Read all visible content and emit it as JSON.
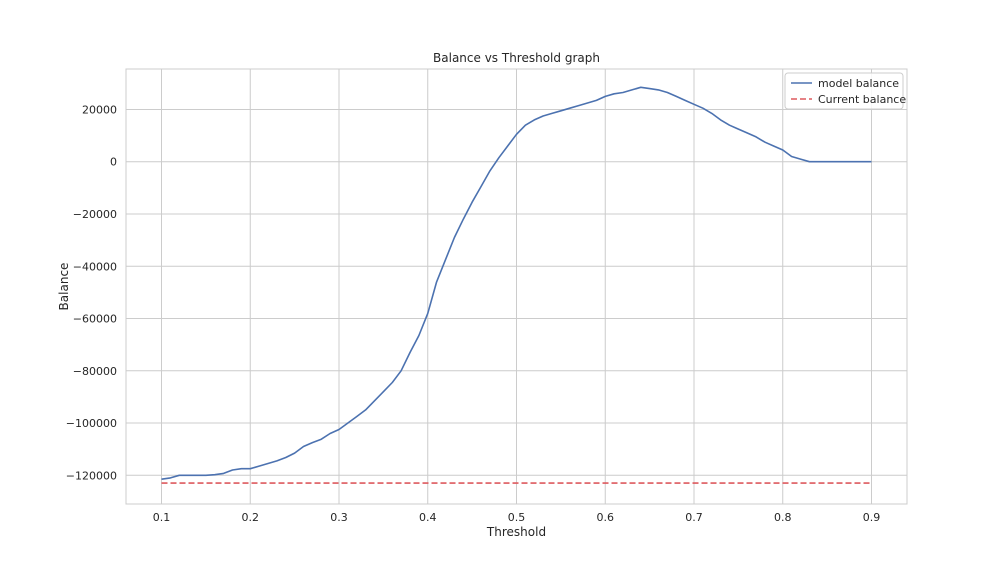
{
  "chart_data": {
    "type": "line",
    "title": "Balance vs Threshold graph",
    "xlabel": "Threshold",
    "ylabel": "Balance",
    "xlim": [
      0.06,
      0.94
    ],
    "ylim": [
      -131000,
      35500
    ],
    "xticks": [
      0.1,
      0.2,
      0.3,
      0.4,
      0.5,
      0.6,
      0.7,
      0.8,
      0.9
    ],
    "xtick_labels": [
      "0.1",
      "0.2",
      "0.3",
      "0.4",
      "0.5",
      "0.6",
      "0.7",
      "0.8",
      "0.9"
    ],
    "yticks": [
      20000,
      0,
      -20000,
      -40000,
      -60000,
      -80000,
      -100000,
      -120000
    ],
    "ytick_labels": [
      "20000",
      "0",
      "−20000",
      "−40000",
      "−60000",
      "−80000",
      "−100000",
      "−120000"
    ],
    "grid": true,
    "legend_position": "top-right",
    "series": [
      {
        "name": "model balance",
        "color": "#4c72b0",
        "style": "solid",
        "x": [
          0.1,
          0.11,
          0.12,
          0.13,
          0.14,
          0.15,
          0.16,
          0.17,
          0.18,
          0.19,
          0.2,
          0.21,
          0.22,
          0.23,
          0.24,
          0.25,
          0.26,
          0.27,
          0.28,
          0.29,
          0.3,
          0.31,
          0.32,
          0.33,
          0.34,
          0.35,
          0.36,
          0.37,
          0.38,
          0.39,
          0.4,
          0.41,
          0.42,
          0.43,
          0.44,
          0.45,
          0.46,
          0.47,
          0.48,
          0.49,
          0.5,
          0.51,
          0.52,
          0.53,
          0.54,
          0.55,
          0.56,
          0.57,
          0.58,
          0.59,
          0.6,
          0.61,
          0.62,
          0.63,
          0.64,
          0.65,
          0.66,
          0.67,
          0.68,
          0.69,
          0.7,
          0.71,
          0.72,
          0.73,
          0.74,
          0.75,
          0.76,
          0.77,
          0.78,
          0.79,
          0.8,
          0.81,
          0.82,
          0.83,
          0.84,
          0.85,
          0.86,
          0.87,
          0.88,
          0.89,
          0.9
        ],
        "y": [
          -121500,
          -121000,
          -120000,
          -120000,
          -120000,
          -120000,
          -119800,
          -119300,
          -118000,
          -117500,
          -117500,
          -116500,
          -115500,
          -114500,
          -113200,
          -111500,
          -109000,
          -107500,
          -106200,
          -104000,
          -102500,
          -100000,
          -97500,
          -95000,
          -91500,
          -88000,
          -84500,
          -80000,
          -73000,
          -66500,
          -58000,
          -46000,
          -37500,
          -29000,
          -22000,
          -15500,
          -9500,
          -3500,
          1500,
          6000,
          10500,
          14000,
          16000,
          17500,
          18500,
          19500,
          20500,
          21500,
          22500,
          23500,
          25000,
          26000,
          26500,
          27500,
          28500,
          28000,
          27500,
          26500,
          25000,
          23500,
          22000,
          20500,
          18500,
          16000,
          14000,
          12500,
          11000,
          9500,
          7500,
          6000,
          4500,
          2000,
          1000,
          0,
          0,
          0,
          0,
          0,
          0,
          0,
          0
        ]
      },
      {
        "name": "Current balance",
        "color": "#dd5a5e",
        "style": "dashed",
        "x": [
          0.1,
          0.9
        ],
        "y": [
          -123000,
          -123000
        ]
      }
    ]
  }
}
